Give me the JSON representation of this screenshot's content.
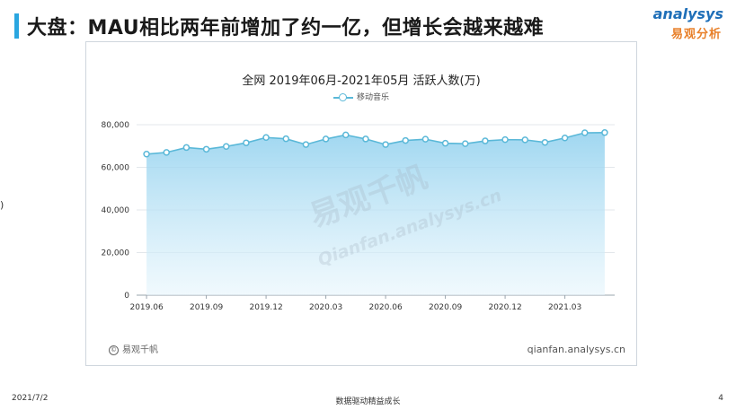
{
  "slide": {
    "title": "大盘：MAU相比两年前增加了约一亿，但增长会越来越难",
    "left_mark": ")",
    "logo": {
      "en": "analysys",
      "cn": "易观分析"
    },
    "footer": {
      "date": "2021/7/2",
      "center": "数据驱动精益成长",
      "page": "4"
    },
    "accent_color": "#2aa6e0"
  },
  "chart": {
    "watermark_cn": "易观千帆",
    "watermark_en": "Qianfan.analysys.cn",
    "source_left": "易观千帆",
    "source_left_icon": "copyright-icon",
    "source_right": "qianfan.analysys.cn"
  },
  "chart_data": {
    "type": "area",
    "title": "全网 2019年06月-2021年05月 活跃人数(万)",
    "legend_position": "top-center",
    "grid": true,
    "series": [
      {
        "name": "移动音乐",
        "color": "#5ab8d8",
        "values": [
          66200,
          67000,
          69300,
          68500,
          69800,
          71500,
          74000,
          73400,
          70700,
          73300,
          75200,
          73300,
          70700,
          72600,
          73200,
          71300,
          71100,
          72400,
          73000,
          72900,
          71700,
          73800,
          76200,
          76300
        ]
      }
    ],
    "categories": [
      "2019.06",
      "2019.07",
      "2019.08",
      "2019.09",
      "2019.10",
      "2019.11",
      "2019.12",
      "2020.01",
      "2020.02",
      "2020.03",
      "2020.04",
      "2020.05",
      "2020.06",
      "2020.07",
      "2020.08",
      "2020.09",
      "2020.10",
      "2020.11",
      "2020.12",
      "2021.01",
      "2021.02",
      "2021.03",
      "2021.04",
      "2021.05"
    ],
    "x_tick_labels": [
      "2019.06",
      "2019.09",
      "2019.12",
      "2020.03",
      "2020.06",
      "2020.09",
      "2020.12",
      "2021.03"
    ],
    "y_ticks": [
      "0",
      "20,000",
      "40,000",
      "60,000",
      "80,000"
    ],
    "ylim": [
      0,
      80000
    ]
  }
}
